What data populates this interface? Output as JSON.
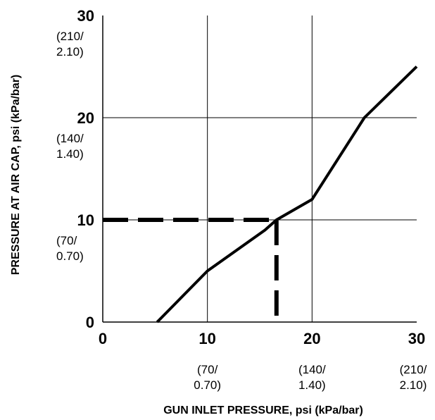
{
  "chart_data": {
    "type": "line",
    "xlabel": "GUN INLET PRESSURE, psi (kPa/bar)",
    "ylabel": "PRESSURE AT AIR CAP, psi (kPa/bar)",
    "xlim": [
      0,
      30
    ],
    "ylim": [
      0,
      30
    ],
    "grid": true,
    "x_ticks": [
      {
        "value": 0,
        "label": "0",
        "sub": []
      },
      {
        "value": 10,
        "label": "10",
        "sub": [
          "(70/",
          "0.70)"
        ]
      },
      {
        "value": 20,
        "label": "20",
        "sub": [
          "(140/",
          "1.40)"
        ]
      },
      {
        "value": 30,
        "label": "30",
        "sub": [
          "(210/",
          "2.10)"
        ]
      }
    ],
    "y_ticks": [
      {
        "value": 0,
        "label": "0",
        "sub": []
      },
      {
        "value": 10,
        "label": "10",
        "sub": [
          "(70/",
          "0.70)"
        ]
      },
      {
        "value": 20,
        "label": "20",
        "sub": [
          "(140/",
          "1.40)"
        ]
      },
      {
        "value": 30,
        "label": "30",
        "sub": [
          "(210/",
          "2.10)"
        ]
      }
    ],
    "series": [
      {
        "x": [
          5.2,
          10,
          15.5,
          16.6,
          20,
          25,
          30
        ],
        "y": [
          0,
          5,
          9,
          10,
          12,
          20,
          25
        ]
      }
    ],
    "reference": {
      "x": 16.6,
      "y": 10,
      "style": "dashed"
    }
  }
}
